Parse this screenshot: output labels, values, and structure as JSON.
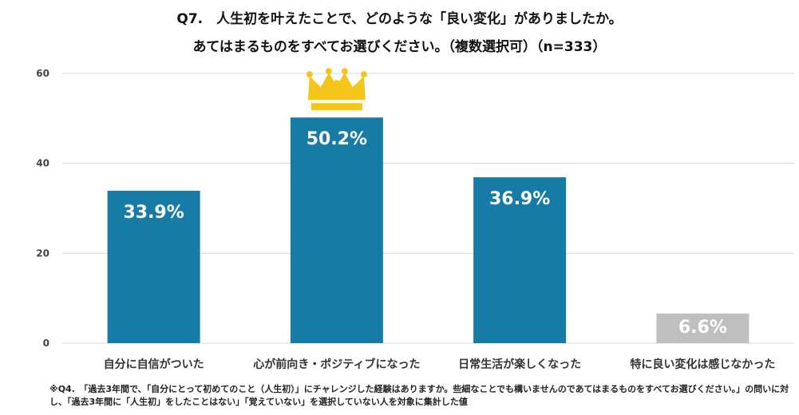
{
  "chart_data": {
    "type": "bar",
    "title": "Q7.　人生初を叶えたことで、どのような「良い変化」がありましたか。",
    "subtitle": "あてはまるものをすべてお選びください。（複数選択可）（n=333）",
    "categories": [
      "自分に自信がついた",
      "心が前向き・ポジティブになった",
      "日常生活が楽しくなった",
      "特に良い変化は感じなかった"
    ],
    "values": [
      33.9,
      50.2,
      36.9,
      6.6
    ],
    "value_labels": [
      "33.9%",
      "50.2%",
      "36.9%",
      "6.6%"
    ],
    "ylim": [
      0,
      60
    ],
    "yticks": [
      0,
      20,
      40,
      60
    ],
    "ytick_labels": [
      "0",
      "20",
      "40",
      "60"
    ],
    "grid": true,
    "xlabel": "",
    "ylabel": "",
    "highlight_index": 1,
    "colors": {
      "bar": "#167ca6",
      "bar_muted": "#bfbfbf",
      "crown": "#f5c518",
      "grid": "#d9d9d9"
    }
  },
  "footnote": "※Q4.　「過去3年間で、「自分にとって初めてのこと（人生初）」にチャレンジした経験はありますか。些細なことでも構いませんのであてはまるものをすべてお選びください。」の問いに対し、「過去3年間に「人生初」をしたことはない」「覚えていない」を選択していない人を対象に集計した値",
  "icons": {
    "top_bar": "crown-icon"
  }
}
